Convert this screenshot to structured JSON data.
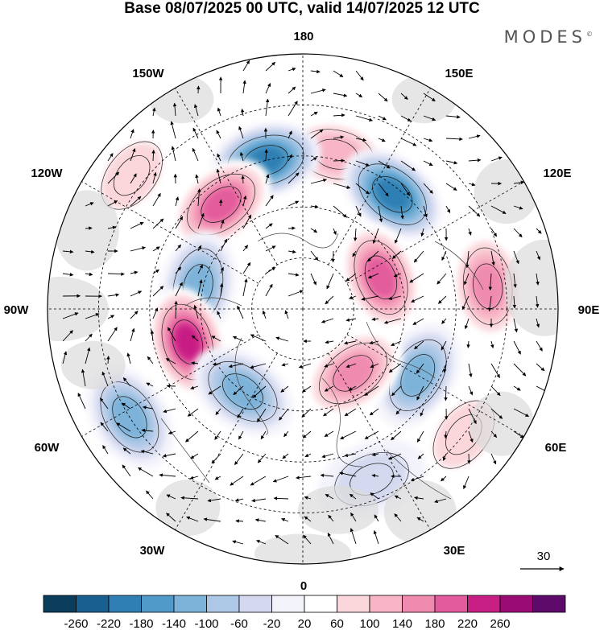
{
  "title": "Base 08/07/2025 00 UTC, valid 14/07/2025 12 UTC",
  "brand": {
    "name": "MODES",
    "mark": "©"
  },
  "longitude_labels": {
    "top": "180",
    "bottom": "0",
    "left": "90W",
    "right": "90E",
    "upper_left_1": "150W",
    "upper_left_2": "120W",
    "upper_right_1": "150E",
    "upper_right_2": "120E",
    "lower_left_1": "60W",
    "lower_left_2": "30W",
    "lower_right_1": "60E",
    "lower_right_2": "30E"
  },
  "reference_vector": {
    "value": "30"
  },
  "colorbar": {
    "ticks": [
      "-260",
      "-220",
      "-180",
      "-140",
      "-100",
      "-60",
      "-20",
      "20",
      "60",
      "100",
      "140",
      "180",
      "220",
      "260"
    ],
    "colors": [
      "#0b3d5c",
      "#195f8f",
      "#2f7fb4",
      "#4f9ac8",
      "#7db3d9",
      "#adc8e6",
      "#d4d9ef",
      "#f3f3fb",
      "#ffffff",
      "#fbd7dc",
      "#f7b5c5",
      "#f08bb0",
      "#e35b9c",
      "#c81f85",
      "#9b0b75",
      "#5e0a6a"
    ]
  },
  "anomaly_fields": [
    {
      "lon": 168,
      "r": 0.62,
      "value": 120
    },
    {
      "lon": 142,
      "r": 0.57,
      "value": -240
    },
    {
      "lon": 112,
      "r": 0.33,
      "value": 200
    },
    {
      "lon": 97,
      "r": 0.73,
      "value": 140
    },
    {
      "lon": 60,
      "r": 0.52,
      "value": -140
    },
    {
      "lon": 38,
      "r": 0.32,
      "value": 140
    },
    {
      "lon": 52,
      "r": 0.8,
      "value": 60
    },
    {
      "lon": -166,
      "r": 0.6,
      "value": -220
    },
    {
      "lon": -142,
      "r": 0.52,
      "value": 200
    },
    {
      "lon": -102,
      "r": 0.42,
      "value": -160
    },
    {
      "lon": -74,
      "r": 0.47,
      "value": 220
    },
    {
      "lon": -58,
      "r": 0.8,
      "value": -160
    },
    {
      "lon": -36,
      "r": 0.4,
      "value": -140
    },
    {
      "lon": 22,
      "r": 0.72,
      "value": -60
    },
    {
      "lon": -128,
      "r": 0.85,
      "value": 60
    }
  ]
}
